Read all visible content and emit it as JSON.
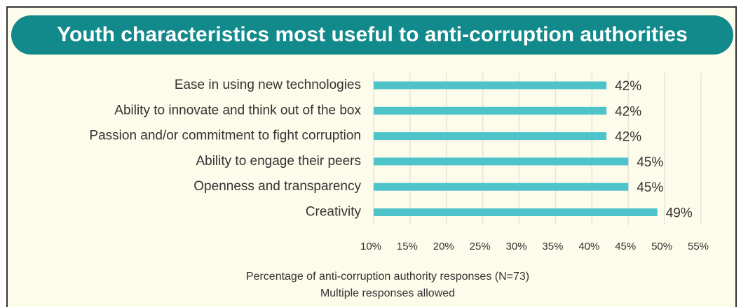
{
  "chart_data": {
    "type": "barh",
    "title": "Youth characteristics most useful to anti-corruption authorities",
    "categories": [
      "Ease in using new technologies",
      "Ability to innovate and think out of the box",
      "Passion and/or commitment to fight corruption",
      "Ability to engage their peers",
      "Openness and transparency",
      "Creativity"
    ],
    "values": [
      42,
      42,
      42,
      45,
      45,
      49
    ],
    "value_labels": [
      "42%",
      "42%",
      "42%",
      "45%",
      "45%",
      "49%"
    ],
    "color": "#4ec3c9",
    "xlim": [
      10,
      55
    ],
    "xticks": [
      {
        "value": 10,
        "label": "10%"
      },
      {
        "value": 15,
        "label": "15%"
      },
      {
        "value": 20,
        "label": "20%"
      },
      {
        "value": 25,
        "label": "25%"
      },
      {
        "value": 30,
        "label": "30%"
      },
      {
        "value": 35,
        "label": "35%"
      },
      {
        "value": 40,
        "label": "40%"
      },
      {
        "value": 45,
        "label": "45%"
      },
      {
        "value": 50,
        "label": "50%"
      },
      {
        "value": 55,
        "label": "55%"
      }
    ],
    "grid": true,
    "xlabel": "Percentage of anti-corruption authority responses (N=73)",
    "note": "Multiple responses allowed"
  }
}
